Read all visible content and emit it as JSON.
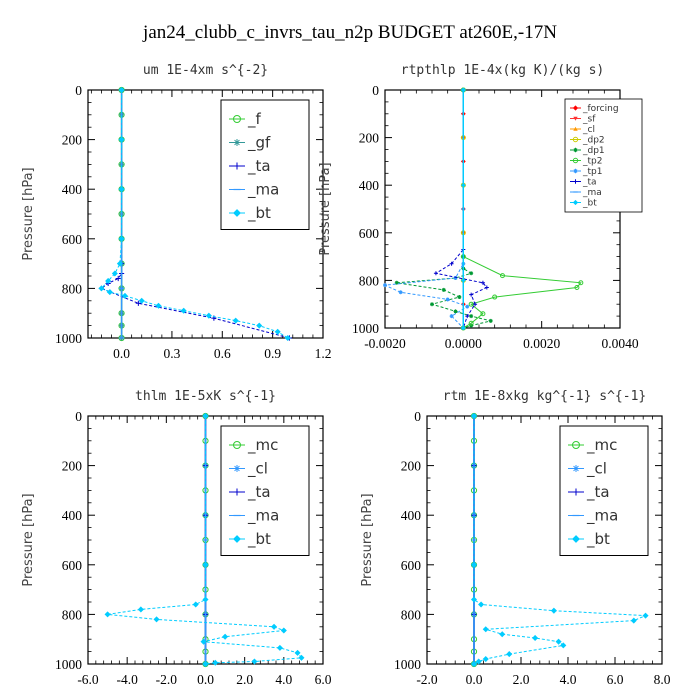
{
  "title": "jan24_clubb_c_invrs_tau_n2p  BUDGET at260E,-17N",
  "chart_data": [
    {
      "type": "line",
      "title": "um  1E-4xm s^{-2}",
      "ylabel": "Pressure [hPa]",
      "xlim": [
        -0.2,
        1.2
      ],
      "ylim": [
        1000,
        0
      ],
      "xticks": [
        0.0,
        0.3,
        0.6,
        0.9,
        1.2
      ],
      "xtick_labels": [
        "0.0",
        "0.3",
        "0.6",
        "0.9",
        "1.2"
      ],
      "yticks": [
        0,
        200,
        400,
        600,
        800,
        1000
      ],
      "ytick_labels": [
        "0",
        "200",
        "400",
        "600",
        "800",
        "1000"
      ],
      "legend_position": "top-right",
      "series": [
        {
          "name": "_f",
          "color": "#33cc33",
          "marker": "circle",
          "x": [
            0,
            0,
            0,
            0,
            0,
            0,
            0,
            0,
            0,
            0,
            0,
            0
          ],
          "y": [
            0,
            100,
            200,
            300,
            400,
            500,
            600,
            700,
            800,
            900,
            950,
            1000
          ]
        },
        {
          "name": "_gf",
          "color": "#339999",
          "marker": "star",
          "x": [
            0,
            0,
            0,
            0,
            0,
            0,
            0,
            0,
            0,
            0,
            0,
            0
          ],
          "y": [
            0,
            100,
            200,
            300,
            400,
            500,
            600,
            700,
            800,
            900,
            950,
            1000
          ]
        },
        {
          "name": "_ta",
          "color": "#0000cc",
          "marker": "plus",
          "x": [
            0,
            0,
            0,
            0,
            0,
            0,
            -0.02,
            -0.08,
            -0.12,
            0.1,
            0.55,
            1.0
          ],
          "y": [
            0,
            200,
            400,
            600,
            700,
            740,
            760,
            780,
            800,
            860,
            920,
            1000
          ]
        },
        {
          "name": "_ma",
          "color": "#3399ff",
          "marker": "dash",
          "x": [
            0,
            0,
            0,
            0
          ],
          "y": [
            0,
            400,
            800,
            1000
          ]
        },
        {
          "name": "_bt",
          "color": "#00ccff",
          "marker": "diamond",
          "x": [
            0,
            0,
            0,
            0,
            -0.01,
            -0.04,
            -0.08,
            -0.12,
            -0.07,
            0.02,
            0.12,
            0.22,
            0.37,
            0.52,
            0.68,
            0.82,
            0.93,
            0.99
          ],
          "y": [
            0,
            200,
            400,
            600,
            700,
            740,
            770,
            800,
            815,
            830,
            850,
            870,
            890,
            910,
            930,
            950,
            975,
            1000
          ]
        }
      ]
    },
    {
      "type": "line",
      "title": "rtpthlp  1E-4x(kg K)/(kg s)",
      "ylabel": "Pressure [hPa]",
      "xlim": [
        -0.002,
        0.004
      ],
      "ylim": [
        1000,
        0
      ],
      "xticks": [
        -0.002,
        0.0,
        0.002,
        0.004
      ],
      "xtick_labels": [
        "-0.0020",
        "0.0000",
        "0.0020",
        "0.0040"
      ],
      "yticks": [
        0,
        200,
        400,
        600,
        800,
        1000
      ],
      "ytick_labels": [
        "0",
        "200",
        "400",
        "600",
        "800",
        "1000"
      ],
      "legend_position": "top-right",
      "series": [
        {
          "name": "_forcing",
          "color": "#ff0000",
          "marker": "diamond",
          "x": [
            0,
            0,
            0,
            0,
            0,
            0,
            0,
            0,
            0,
            0,
            0
          ],
          "y": [
            0,
            100,
            200,
            300,
            400,
            500,
            600,
            700,
            800,
            900,
            1000
          ]
        },
        {
          "name": "_sf",
          "color": "#ff3333",
          "marker": "triangle-down",
          "x": [
            0,
            0,
            0,
            0,
            0,
            0
          ],
          "y": [
            0,
            200,
            400,
            600,
            800,
            1000
          ]
        },
        {
          "name": "_cl",
          "color": "#ff9900",
          "marker": "triangle-up",
          "x": [
            0,
            0,
            0,
            0,
            0,
            0
          ],
          "y": [
            0,
            200,
            400,
            600,
            800,
            1000
          ]
        },
        {
          "name": "_dp2",
          "color": "#cccc00",
          "marker": "circle",
          "x": [
            0,
            0,
            0,
            0,
            0,
            0
          ],
          "y": [
            0,
            200,
            400,
            600,
            800,
            1000
          ]
        },
        {
          "name": "_dp1",
          "color": "#009933",
          "marker": "star",
          "x": [
            0,
            0,
            0,
            0.0002,
            -0.0002,
            -0.0017,
            -0.0005,
            -0.0001,
            -0.0008,
            -0.0002,
            0.0002,
            0.0007,
            0.0002,
            0
          ],
          "y": [
            0,
            700,
            750,
            770,
            790,
            810,
            840,
            870,
            900,
            930,
            950,
            970,
            990,
            1000
          ]
        },
        {
          "name": "_tp2",
          "color": "#33cc33",
          "marker": "circle",
          "x": [
            0,
            0,
            0.001,
            0.003,
            0.0029,
            0.0008,
            0.0002,
            0.0005,
            0.0002,
            0
          ],
          "y": [
            0,
            700,
            780,
            810,
            830,
            870,
            900,
            940,
            980,
            1000
          ]
        },
        {
          "name": "_tp1",
          "color": "#3399ff",
          "marker": "star",
          "x": [
            0,
            0,
            -0.0002,
            -0.002,
            -0.0016,
            -0.0004,
            0.0001,
            -0.0003,
            0
          ],
          "y": [
            0,
            730,
            790,
            820,
            850,
            880,
            910,
            950,
            1000
          ]
        },
        {
          "name": "_ta",
          "color": "#0000cc",
          "marker": "plus",
          "x": [
            0,
            0,
            -0.0003,
            -0.0007,
            0.0005,
            0.0006,
            0.0002,
            0.0003,
            0.0001,
            0
          ],
          "y": [
            0,
            670,
            730,
            770,
            810,
            830,
            860,
            900,
            950,
            1000
          ]
        },
        {
          "name": "_ma",
          "color": "#3399ff",
          "marker": "dash",
          "x": [
            0,
            0,
            0
          ],
          "y": [
            0,
            500,
            1000
          ]
        },
        {
          "name": "_bt",
          "color": "#00ccff",
          "marker": "diamond",
          "x": [
            0,
            0,
            0,
            0
          ],
          "y": [
            0,
            400,
            800,
            1000
          ]
        }
      ]
    },
    {
      "type": "line",
      "title": "thlm  1E-5xK s^{-1}",
      "ylabel": "Pressure [hPa]",
      "xlim": [
        -6,
        6
      ],
      "ylim": [
        1000,
        0
      ],
      "xticks": [
        -6,
        -4,
        -2,
        0,
        2,
        4,
        6
      ],
      "xtick_labels": [
        "-6.0",
        "-4.0",
        "-2.0",
        "0.0",
        "2.0",
        "4.0",
        "6.0"
      ],
      "yticks": [
        0,
        200,
        400,
        600,
        800,
        1000
      ],
      "ytick_labels": [
        "0",
        "200",
        "400",
        "600",
        "800",
        "1000"
      ],
      "legend_position": "top-right",
      "series": [
        {
          "name": "_mc",
          "color": "#33cc33",
          "marker": "circle",
          "x": [
            0,
            0,
            0,
            0,
            0,
            0,
            0,
            0,
            0,
            0,
            0,
            0
          ],
          "y": [
            0,
            100,
            200,
            300,
            400,
            500,
            600,
            700,
            800,
            900,
            950,
            1000
          ]
        },
        {
          "name": "_cl",
          "color": "#3399ff",
          "marker": "star",
          "x": [
            0,
            0,
            0,
            0,
            0,
            0
          ],
          "y": [
            0,
            200,
            400,
            600,
            800,
            1000
          ]
        },
        {
          "name": "_ta",
          "color": "#0000cc",
          "marker": "plus",
          "x": [
            0,
            0,
            0,
            0,
            0,
            0
          ],
          "y": [
            0,
            200,
            400,
            600,
            800,
            1000
          ]
        },
        {
          "name": "_ma",
          "color": "#3399ff",
          "marker": "dash",
          "x": [
            0,
            0,
            0
          ],
          "y": [
            0,
            500,
            1000
          ]
        },
        {
          "name": "_bt",
          "color": "#00ccff",
          "marker": "diamond",
          "x": [
            0,
            0,
            0,
            -0.5,
            -3.3,
            -5.0,
            -2.5,
            3.5,
            4.0,
            1.0,
            -0.1,
            3.8,
            4.7,
            4.9,
            2.5,
            0.5,
            0
          ],
          "y": [
            0,
            600,
            740,
            760,
            780,
            800,
            820,
            850,
            865,
            890,
            910,
            935,
            955,
            975,
            990,
            995,
            1000
          ]
        }
      ]
    },
    {
      "type": "line",
      "title": "rtm  1E-8xkg kg^{-1} s^{-1}",
      "ylabel": "Pressure [hPa]",
      "xlim": [
        -2,
        8
      ],
      "ylim": [
        1000,
        0
      ],
      "xticks": [
        -2,
        0,
        2,
        4,
        6,
        8
      ],
      "xtick_labels": [
        "-2.0",
        "0.0",
        "2.0",
        "4.0",
        "6.0",
        "8.0"
      ],
      "yticks": [
        0,
        200,
        400,
        600,
        800,
        1000
      ],
      "ytick_labels": [
        "0",
        "200",
        "400",
        "600",
        "800",
        "1000"
      ],
      "legend_position": "top-right",
      "series": [
        {
          "name": "_mc",
          "color": "#33cc33",
          "marker": "circle",
          "x": [
            0,
            0,
            0,
            0,
            0,
            0,
            0,
            0,
            0,
            0,
            0,
            0
          ],
          "y": [
            0,
            100,
            200,
            300,
            400,
            500,
            600,
            700,
            800,
            900,
            950,
            1000
          ]
        },
        {
          "name": "_cl",
          "color": "#3399ff",
          "marker": "star",
          "x": [
            0,
            0,
            0,
            0,
            0,
            0
          ],
          "y": [
            0,
            200,
            400,
            600,
            800,
            1000
          ]
        },
        {
          "name": "_ta",
          "color": "#0000cc",
          "marker": "plus",
          "x": [
            0,
            0,
            0,
            0,
            0,
            0
          ],
          "y": [
            0,
            200,
            400,
            600,
            800,
            1000
          ]
        },
        {
          "name": "_ma",
          "color": "#3399ff",
          "marker": "dash",
          "x": [
            0,
            0,
            0
          ],
          "y": [
            0,
            500,
            1000
          ]
        },
        {
          "name": "_bt",
          "color": "#00ccff",
          "marker": "diamond",
          "x": [
            0,
            0,
            0,
            0.3,
            3.4,
            7.3,
            6.8,
            0.5,
            1.2,
            2.6,
            3.6,
            3.8,
            1.5,
            0.5,
            0.2,
            0
          ],
          "y": [
            0,
            600,
            740,
            760,
            785,
            805,
            825,
            860,
            880,
            895,
            910,
            925,
            960,
            980,
            990,
            1000
          ]
        }
      ]
    }
  ]
}
